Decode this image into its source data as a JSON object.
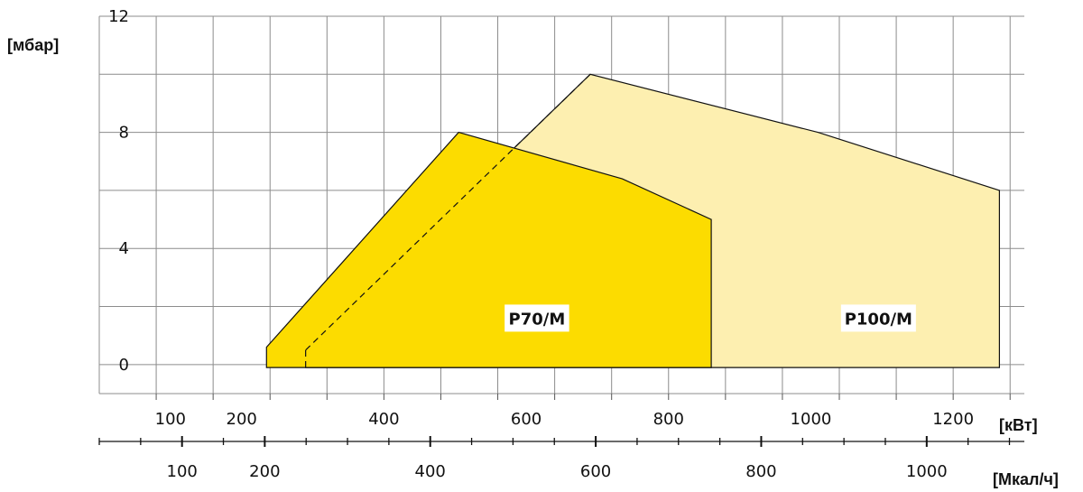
{
  "chart_data": {
    "type": "area",
    "y_unit_label": "[мбар]",
    "x_unit_label": "[кВт]",
    "x2_unit_label": "[Мкал/ч]",
    "xlim": [
      0,
      1300
    ],
    "ylim": [
      -1,
      12
    ],
    "x2lim": [
      0,
      1118
    ],
    "grid": true,
    "y_ticks": [
      0,
      4,
      8,
      12
    ],
    "x_ticks": [
      100,
      200,
      400,
      600,
      800,
      1000,
      1200
    ],
    "x_tick_labels": [
      "100",
      "200",
      "400",
      "600",
      "800",
      "1000",
      "1200"
    ],
    "x2_ticks": [
      100,
      200,
      400,
      600,
      800,
      1000
    ],
    "x2_tick_labels": [
      "100",
      "200",
      "400",
      "600",
      "800",
      "1000"
    ],
    "series": [
      {
        "name": "P100/M",
        "color": "#FDEFB0",
        "outline": [
          {
            "x": 290,
            "y": -0.1
          },
          {
            "x": 290,
            "y": 0.5
          },
          {
            "x": 690,
            "y": 10
          },
          {
            "x": 1010,
            "y": 8
          },
          {
            "x": 1265,
            "y": 6
          },
          {
            "x": 1265,
            "y": -0.1
          }
        ],
        "label_pos": {
          "x": 1095,
          "y": 1.6
        }
      },
      {
        "name": "P70/M",
        "color": "#FCDC00",
        "outline": [
          {
            "x": 235,
            "y": -0.1
          },
          {
            "x": 235,
            "y": 0.6
          },
          {
            "x": 505,
            "y": 8
          },
          {
            "x": 735,
            "y": 6.4
          },
          {
            "x": 860,
            "y": 5
          },
          {
            "x": 860,
            "y": -0.1
          }
        ],
        "label_pos": {
          "x": 615,
          "y": 1.6
        }
      }
    ]
  }
}
